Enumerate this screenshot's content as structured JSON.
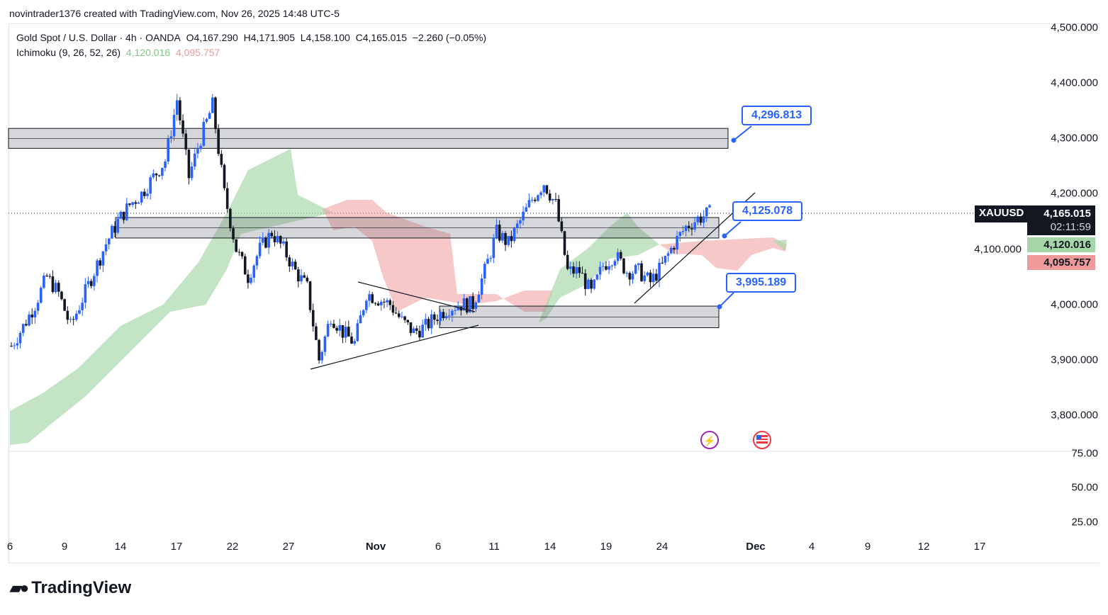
{
  "credit": "novintrader1376 created with TradingView.com, Nov 26, 2025 14:48 UTC-5",
  "legend": {
    "symbol": "Gold Spot / U.S. Dollar · 4h · OANDA",
    "ohlc": "O4,167.290  H4,171.905  L4,158.100  C4,165.015  −2.260 (−0.05%)",
    "indicator": "Ichimoku (9, 26, 52, 26)",
    "ind_v1": "4,120.016",
    "ind_v2": "4,095.757"
  },
  "tags": {
    "symbol": "XAUUSD",
    "price": "4,165.015",
    "countdown": "02:11:59",
    "green": "4,120.016",
    "red": "4,095.757"
  },
  "callouts": [
    "4,296.813",
    "4,125.078",
    "3,995.189"
  ],
  "logo": "TradingView",
  "chart_data": {
    "type": "candlestick",
    "title": "Gold Spot / U.S. Dollar 4h",
    "y_ticks": [
      "4,500.000",
      "4,400.000",
      "4,300.000",
      "4,200.000",
      "4,100.000",
      "4,000.000",
      "3,900.000",
      "3,800.000"
    ],
    "y_tick_values": [
      4500,
      4400,
      4300,
      4200,
      4100,
      4000,
      3900,
      3800
    ],
    "ylim": [
      3800,
      4500
    ],
    "sub_ticks": [
      "75.00",
      "50.00",
      "25.00"
    ],
    "x_ticks": [
      "6",
      "9",
      "14",
      "17",
      "22",
      "27",
      "Nov",
      "6",
      "11",
      "14",
      "19",
      "24",
      "Dec",
      "4",
      "9",
      "12",
      "17"
    ],
    "closes_approx": [
      3925,
      3960,
      4000,
      4050,
      4020,
      3960,
      4010,
      4060,
      4110,
      4150,
      4180,
      4200,
      4230,
      4260,
      4370,
      4230,
      4300,
      4360,
      4200,
      4100,
      4050,
      4100,
      4130,
      4100,
      4060,
      4030,
      3900,
      3980,
      3950,
      3930,
      4020,
      4010,
      4000,
      3970,
      3950,
      3960,
      3980,
      3995,
      4000,
      4000,
      4060,
      4130,
      4110,
      4150,
      4190,
      4220,
      4180,
      4060,
      4060,
      4020,
      4070,
      4090,
      4060,
      4060,
      4040,
      4070,
      4110,
      4140,
      4155,
      4165
    ],
    "zones": [
      [
        4282,
        4318
      ],
      [
        4120,
        4157
      ],
      [
        3958,
        3997
      ]
    ],
    "current_price": 4165.015,
    "colors": {
      "up": "#2962ff",
      "down": "#131722",
      "cloud_up": "#a5d6a7",
      "cloud_down": "#ef9a9a",
      "callout": "#2962ff"
    }
  }
}
